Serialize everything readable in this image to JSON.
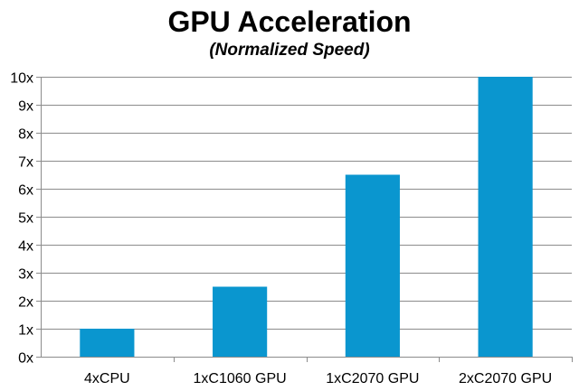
{
  "chart_data": {
    "type": "bar",
    "title": "GPU Acceleration",
    "subtitle": "(Normalized Speed)",
    "xlabel": "",
    "ylabel": "",
    "categories": [
      "4xCPU",
      "1xC1060 GPU",
      "1xC2070 GPU",
      "2xC2070 GPU"
    ],
    "values": [
      1,
      2.5,
      6.5,
      10
    ],
    "ylim": [
      0,
      10
    ],
    "yticks": [
      0,
      1,
      2,
      3,
      4,
      5,
      6,
      7,
      8,
      9,
      10
    ],
    "ytick_labels": [
      "0x",
      "1x",
      "2x",
      "3x",
      "4x",
      "5x",
      "6x",
      "7x",
      "8x",
      "9x",
      "10x"
    ],
    "grid": true,
    "legend": "none",
    "bar_color": "#0a96cf"
  }
}
